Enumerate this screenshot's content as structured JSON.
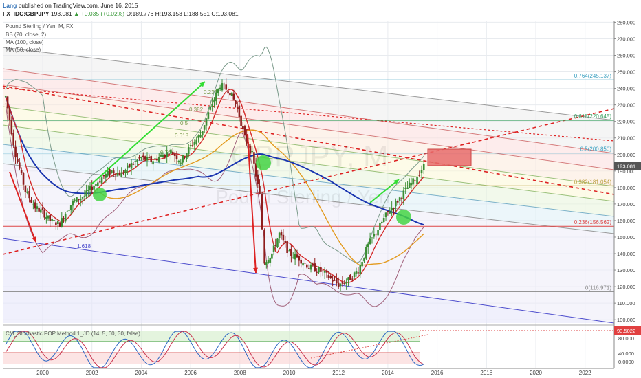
{
  "header": {
    "author": "Lang",
    "published": "published on TradingView.com, June 16, 2015",
    "symbol": "FX_IDC:GBPJPY",
    "last": "193.081",
    "change": "▲ +0.035 (+0.02%)",
    "ohlc": "O:189.776  H:193.153  L:188.551  C:193.081"
  },
  "legend": {
    "title": "Pound Sterling / Yen, M, FX",
    "bb": "BB (20, close, 2)",
    "ma100": "MA (100, close)",
    "ma50": "MA (50, close)"
  },
  "watermark": {
    "line1": "GBPJPY, M",
    "line2": "Pound Sterling / Yen"
  },
  "oscillator": {
    "label": "CM_Stochastic POP Method 1_JD (14, 5, 60, 30, false)",
    "value": "93.5022"
  },
  "colors": {
    "bg": "#ffffff",
    "grid": "#e8ebef",
    "price_tag": "#555555",
    "bb": "#7a9a8a",
    "ma100": "#1a35b0",
    "ma50": "#e39a1e",
    "ma_red": "#d42a2a",
    "candle_up": "#3b8d34",
    "candle_down": "#8e1d1d",
    "arrow_green": "#33dd33",
    "arrow_red": "#dd2222",
    "marker_green": "#44d444",
    "target_box": "#e86b6b",
    "osc_line": "#2a66c4",
    "osc_red": "#c8324d"
  },
  "chart_data": {
    "type": "candlestick",
    "title": "Pound Sterling / Yen, M, FX",
    "timeframe": "M",
    "x_ticks": [
      "2000",
      "2002",
      "2004",
      "2006",
      "2008",
      "2010",
      "2012",
      "2014",
      "2016",
      "2018",
      "2020",
      "2022"
    ],
    "y_ticks": [
      "100.000",
      "110.000",
      "120.000",
      "130.000",
      "140.000",
      "150.000",
      "160.000",
      "170.000",
      "180.000",
      "190.000",
      "200.000",
      "210.000",
      "220.000",
      "230.000",
      "240.000",
      "250.000",
      "260.000",
      "270.000",
      "280.000"
    ],
    "ylim": [
      98,
      281
    ],
    "last_price": 193.081,
    "price_path": [
      {
        "t": 1998.5,
        "v": 235
      },
      {
        "t": 1998.9,
        "v": 200
      },
      {
        "t": 1999.3,
        "v": 178
      },
      {
        "t": 1999.7,
        "v": 168
      },
      {
        "t": 2000.0,
        "v": 165
      },
      {
        "t": 2000.3,
        "v": 160
      },
      {
        "t": 2000.7,
        "v": 158
      },
      {
        "t": 2001.0,
        "v": 167
      },
      {
        "t": 2001.3,
        "v": 172
      },
      {
        "t": 2001.7,
        "v": 175
      },
      {
        "t": 2002.0,
        "v": 180
      },
      {
        "t": 2002.4,
        "v": 186
      },
      {
        "t": 2002.8,
        "v": 190
      },
      {
        "t": 2003.2,
        "v": 188
      },
      {
        "t": 2003.6,
        "v": 194
      },
      {
        "t": 2004.0,
        "v": 198
      },
      {
        "t": 2004.4,
        "v": 196
      },
      {
        "t": 2004.8,
        "v": 199
      },
      {
        "t": 2005.2,
        "v": 202
      },
      {
        "t": 2005.6,
        "v": 196
      },
      {
        "t": 2006.0,
        "v": 205
      },
      {
        "t": 2006.4,
        "v": 212
      },
      {
        "t": 2006.8,
        "v": 228
      },
      {
        "t": 2007.2,
        "v": 242
      },
      {
        "t": 2007.6,
        "v": 238
      },
      {
        "t": 2007.9,
        "v": 228
      },
      {
        "t": 2008.2,
        "v": 210
      },
      {
        "t": 2008.5,
        "v": 200
      },
      {
        "t": 2008.8,
        "v": 175
      },
      {
        "t": 2009.0,
        "v": 135
      },
      {
        "t": 2009.3,
        "v": 140
      },
      {
        "t": 2009.6,
        "v": 152
      },
      {
        "t": 2010.0,
        "v": 140
      },
      {
        "t": 2010.4,
        "v": 137
      },
      {
        "t": 2010.8,
        "v": 132
      },
      {
        "t": 2011.2,
        "v": 130
      },
      {
        "t": 2011.6,
        "v": 126
      },
      {
        "t": 2012.0,
        "v": 121
      },
      {
        "t": 2012.4,
        "v": 124
      },
      {
        "t": 2012.8,
        "v": 130
      },
      {
        "t": 2013.2,
        "v": 145
      },
      {
        "t": 2013.6,
        "v": 155
      },
      {
        "t": 2014.0,
        "v": 165
      },
      {
        "t": 2014.4,
        "v": 172
      },
      {
        "t": 2014.8,
        "v": 180
      },
      {
        "t": 2015.1,
        "v": 185
      },
      {
        "t": 2015.46,
        "v": 193
      }
    ],
    "fib_levels": [
      {
        "ratio": "0",
        "label": "0(116.971)",
        "v": 116.971
      },
      {
        "ratio": "0.236",
        "label": "0.236(156.562)",
        "v": 156.562
      },
      {
        "ratio": "0.382",
        "label": "0.382(181.054)",
        "v": 181.054
      },
      {
        "ratio": "0.5",
        "label": "0.5(200.850)",
        "v": 200.85
      },
      {
        "ratio": "0.618",
        "label": "0.618(220.645)",
        "v": 220.645
      },
      {
        "ratio": "0.764",
        "label": "0.764(245.137)",
        "v": 245.137
      }
    ],
    "channel_labels": [
      "0.236",
      "0.382",
      "0.5",
      "0.618",
      "0.764",
      "1.618"
    ],
    "oscillator": {
      "value": 93.5022,
      "y_ticks": [
        "80.000",
        "40.000",
        "0.0000"
      ]
    },
    "grid": true
  }
}
